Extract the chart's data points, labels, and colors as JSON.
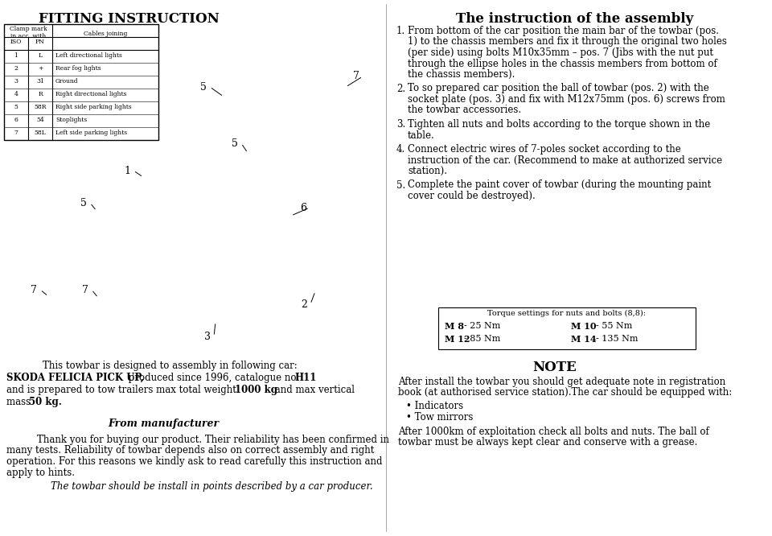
{
  "bg_color": "#ffffff",
  "title_left": "FITTING INSTRUCTION",
  "title_right": "The instruction of the assembly",
  "table_rows": [
    [
      "1",
      "L",
      "Left directional lights"
    ],
    [
      "2",
      "+",
      "Rear fog lights"
    ],
    [
      "3",
      "31",
      "Ground"
    ],
    [
      "4",
      "R",
      "Right directional lights"
    ],
    [
      "5",
      "58R",
      "Right side parking lights"
    ],
    [
      "6",
      "54",
      "Stoplights"
    ],
    [
      "7",
      "58L",
      "Left side parking lights"
    ]
  ],
  "assembly_instructions": [
    [
      "From bottom of the car position the main bar of the towbar (pos.",
      "1) to the chassis members and fix it through the original two holes",
      "(per side) using bolts M10x35mm – pos. 7 (Jibs with the nut put",
      "through the ellipse holes in the chassis members from bottom of",
      "the chassis members)."
    ],
    [
      "To so prepared car position the ball of towbar (pos. 2) with the",
      "socket plate (pos. 3) and fix with M12x75mm (pos. 6) screws from",
      "the towbar accessories."
    ],
    [
      "Tighten all nuts and bolts according to the torque shown in the",
      "table."
    ],
    [
      "Connect electric wires of 7-poles socket according to the",
      "instruction of the car. (Recommend to make at authorized service",
      "station)."
    ],
    [
      "Complete the paint cover of towbar (during the mounting paint",
      "cover could be destroyed)."
    ]
  ],
  "torque_title": "Torque settings for nuts and bolts (8,8):",
  "note_title": "NOTE",
  "note_text_lines": [
    "After install the towbar you should get adequate note in registration",
    "book (at authorised service station).The car should be equipped with:"
  ],
  "note_bullets": [
    "Indicators",
    "Tow mirrors"
  ],
  "note_text2_lines": [
    "After 1000km of exploitation check all bolts and nuts. The ball of",
    "towbar must be always kept clear and conserve with a grease."
  ],
  "bottom_line1": "This towbar is designed to assembly in following car:",
  "bottom_line2a": "SKODA FELICIA PICK UP,",
  "bottom_line2b": " produced since 1996, catalogue no. ",
  "bottom_line2c": "H11",
  "bottom_line3a": "and is prepared to tow trailers max total weight ",
  "bottom_line3b": "1000 kg",
  "bottom_line3c": " and max vertical",
  "bottom_line4a": "mass ",
  "bottom_line4b": "50 kg.",
  "from_manufacturer": "From manufacturer",
  "manufacturer_lines": [
    "Thank you for buying our product. Their reliability has been confirmed in",
    "many tests. Reliability of towbar depends also on correct assembly and right",
    "operation. For this reasons we kindly ask to read carefully this instruction and",
    "apply to hints."
  ],
  "italic_line": "The towbar should be install in points described by a car producer."
}
